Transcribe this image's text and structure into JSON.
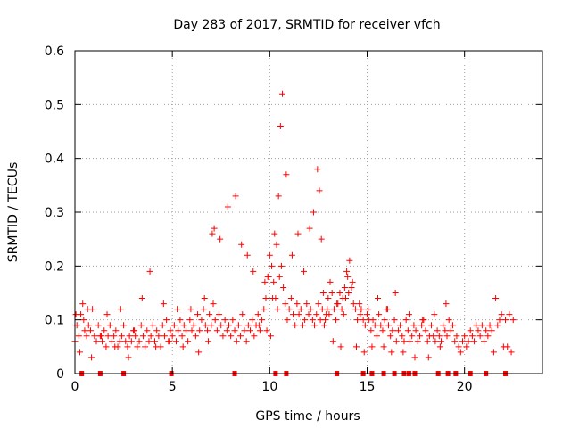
{
  "chart_data": {
    "type": "scatter",
    "title": "Day 283 of 2017, SRMTID for receiver vfch",
    "xlabel": "GPS time / hours",
    "ylabel": "SRMTID / TECUs",
    "xlim": [
      0,
      24
    ],
    "ylim": [
      0,
      0.6
    ],
    "xticks": [
      0,
      5,
      10,
      15,
      20
    ],
    "yticks": [
      0,
      0.1,
      0.2,
      0.3,
      0.4,
      0.5,
      0.6
    ],
    "xtick_labels": [
      "0",
      "5",
      "10",
      "15",
      "20"
    ],
    "ytick_labels": [
      "0",
      "0.1",
      "0.2",
      "0.3",
      "0.4",
      "0.5",
      "0.6"
    ],
    "grid": true,
    "marker": "+",
    "colors": {
      "series": "#ff0000",
      "axes": "#000000",
      "grid": "#a0a0a0"
    },
    "series": [
      {
        "name": "SRMTID",
        "points_x": [
          0.0,
          0.1,
          0.2,
          0.3,
          0.4,
          0.5,
          0.6,
          0.7,
          0.8,
          0.9,
          1.0,
          1.1,
          1.2,
          1.3,
          1.4,
          1.5,
          1.6,
          1.7,
          1.8,
          1.9,
          2.0,
          2.1,
          2.2,
          2.3,
          2.4,
          2.5,
          2.6,
          2.7,
          2.8,
          2.9,
          3.0,
          3.1,
          3.2,
          3.3,
          3.4,
          3.5,
          3.6,
          3.7,
          3.8,
          3.9,
          4.0,
          4.1,
          4.2,
          4.3,
          4.4,
          4.5,
          4.6,
          4.7,
          4.8,
          4.9,
          5.0,
          5.1,
          5.2,
          5.3,
          5.4,
          5.5,
          5.6,
          5.7,
          5.8,
          5.9,
          6.0,
          6.1,
          6.2,
          6.3,
          6.4,
          6.5,
          6.6,
          6.7,
          6.8,
          6.9,
          7.0,
          7.1,
          7.2,
          7.3,
          7.4,
          7.5,
          7.6,
          7.7,
          7.8,
          7.9,
          8.0,
          8.1,
          8.2,
          8.3,
          8.4,
          8.5,
          8.6,
          8.7,
          8.8,
          8.9,
          9.0,
          9.1,
          9.2,
          9.3,
          9.4,
          9.5,
          9.6,
          9.7,
          9.8,
          9.9,
          10.0,
          10.1,
          10.2,
          10.3,
          10.4,
          10.5,
          10.6,
          10.7,
          10.8,
          10.9,
          11.0,
          11.1,
          11.2,
          11.3,
          11.4,
          11.5,
          11.6,
          11.7,
          11.8,
          11.9,
          12.0,
          12.1,
          12.2,
          12.3,
          12.4,
          12.5,
          12.6,
          12.7,
          12.8,
          12.9,
          13.0,
          13.1,
          13.2,
          13.3,
          13.4,
          13.5,
          13.6,
          13.7,
          13.8,
          13.9,
          14.0,
          14.1,
          14.2,
          14.3,
          14.4,
          14.5,
          14.6,
          14.7,
          14.8,
          14.9,
          15.0,
          15.1,
          15.2,
          15.3,
          15.4,
          15.5,
          15.6,
          15.7,
          15.8,
          15.9,
          16.0,
          16.1,
          16.2,
          16.3,
          16.4,
          16.5,
          16.6,
          16.7,
          16.8,
          16.9,
          17.0,
          17.1,
          17.2,
          17.3,
          17.4,
          17.5,
          17.6,
          17.7,
          17.8,
          17.9,
          18.0,
          18.1,
          18.2,
          18.3,
          18.4,
          18.5,
          18.6,
          18.7,
          18.8,
          18.9,
          19.0,
          19.1,
          19.2,
          19.3,
          19.4,
          19.5,
          19.6,
          19.7,
          19.8,
          19.9,
          20.0,
          20.1,
          20.2,
          20.3,
          20.4,
          20.5,
          20.6,
          20.7,
          20.8,
          20.9,
          21.0,
          21.1,
          21.2,
          21.3,
          21.4,
          21.5,
          21.6,
          21.7,
          21.8,
          21.9,
          22.0,
          22.1,
          22.2,
          22.3,
          22.4,
          22.5,
          0.05,
          0.25,
          0.45,
          0.65,
          0.85,
          1.35,
          1.65,
          2.05,
          2.35,
          2.75,
          3.05,
          3.45,
          3.85,
          4.15,
          4.55,
          4.85,
          5.25,
          5.55,
          5.95,
          6.35,
          6.65,
          6.85,
          7.05,
          7.15,
          7.45,
          7.85,
          8.25,
          8.55,
          8.85,
          9.15,
          9.45,
          9.75,
          9.85,
          9.95,
          10.05,
          10.15,
          10.25,
          10.35,
          10.45,
          10.55,
          10.65,
          10.85,
          11.15,
          11.45,
          11.75,
          12.05,
          12.25,
          12.45,
          12.55,
          12.65,
          12.75,
          12.85,
          12.95,
          13.05,
          13.25,
          13.45,
          13.65,
          13.75,
          13.85,
          13.95,
          14.05,
          14.25,
          14.45,
          14.65,
          14.85,
          15.05,
          15.25,
          15.55,
          15.85,
          16.05,
          16.25,
          16.45,
          16.85,
          17.15,
          17.45,
          17.85,
          18.15,
          18.45,
          18.75,
          19.05,
          19.35,
          19.65,
          19.95,
          20.25,
          20.55,
          20.85,
          21.15,
          21.45,
          21.75,
          22.05,
          22.35
        ],
        "points_y": [
          0.06,
          0.09,
          0.07,
          0.11,
          0.13,
          0.08,
          0.07,
          0.09,
          0.08,
          0.12,
          0.07,
          0.06,
          0.09,
          0.07,
          0.06,
          0.08,
          0.05,
          0.07,
          0.09,
          0.06,
          0.07,
          0.08,
          0.05,
          0.06,
          0.07,
          0.09,
          0.06,
          0.05,
          0.07,
          0.06,
          0.08,
          0.07,
          0.05,
          0.06,
          0.09,
          0.07,
          0.05,
          0.08,
          0.06,
          0.07,
          0.09,
          0.06,
          0.08,
          0.07,
          0.05,
          0.09,
          0.07,
          0.1,
          0.06,
          0.08,
          0.07,
          0.09,
          0.06,
          0.08,
          0.1,
          0.07,
          0.09,
          0.08,
          0.06,
          0.1,
          0.08,
          0.09,
          0.07,
          0.11,
          0.08,
          0.1,
          0.12,
          0.09,
          0.08,
          0.11,
          0.09,
          0.13,
          0.1,
          0.08,
          0.11,
          0.09,
          0.07,
          0.1,
          0.08,
          0.09,
          0.07,
          0.1,
          0.08,
          0.06,
          0.09,
          0.07,
          0.11,
          0.08,
          0.06,
          0.09,
          0.08,
          0.1,
          0.07,
          0.09,
          0.11,
          0.08,
          0.1,
          0.12,
          0.14,
          0.18,
          0.22,
          0.2,
          0.17,
          0.14,
          0.12,
          0.18,
          0.2,
          0.16,
          0.13,
          0.1,
          0.12,
          0.14,
          0.11,
          0.09,
          0.13,
          0.11,
          0.12,
          0.09,
          0.1,
          0.13,
          0.11,
          0.12,
          0.1,
          0.09,
          0.11,
          0.13,
          0.1,
          0.12,
          0.09,
          0.11,
          0.14,
          0.17,
          0.15,
          0.12,
          0.1,
          0.13,
          0.15,
          0.12,
          0.11,
          0.14,
          0.18,
          0.21,
          0.16,
          0.13,
          0.12,
          0.1,
          0.13,
          0.12,
          0.1,
          0.09,
          0.11,
          0.1,
          0.08,
          0.1,
          0.09,
          0.07,
          0.11,
          0.09,
          0.08,
          0.1,
          0.12,
          0.09,
          0.07,
          0.08,
          0.1,
          0.06,
          0.08,
          0.09,
          0.07,
          0.06,
          0.1,
          0.08,
          0.06,
          0.07,
          0.09,
          0.08,
          0.06,
          0.07,
          0.09,
          0.1,
          0.08,
          0.06,
          0.07,
          0.09,
          0.07,
          0.06,
          0.08,
          0.07,
          0.06,
          0.09,
          0.08,
          0.07,
          0.1,
          0.08,
          0.09,
          0.06,
          0.07,
          0.05,
          0.04,
          0.06,
          0.07,
          0.05,
          0.06,
          0.08,
          0.07,
          0.06,
          0.09,
          0.08,
          0.07,
          0.09,
          0.06,
          0.08,
          0.07,
          0.09,
          0.08,
          0.04,
          0.14,
          0.09,
          0.1,
          0.11,
          0.05,
          0.1,
          0.05,
          0.11,
          0.04,
          0.1,
          0.11,
          0.04,
          0.1,
          0.12,
          0.03,
          0.07,
          0.11,
          0.05,
          0.12,
          0.03,
          0.08,
          0.14,
          0.19,
          0.05,
          0.13,
          0.06,
          0.12,
          0.05,
          0.12,
          0.04,
          0.14,
          0.06,
          0.26,
          0.27,
          0.25,
          0.31,
          0.33,
          0.24,
          0.22,
          0.19,
          0.09,
          0.17,
          0.08,
          0.18,
          0.07,
          0.14,
          0.26,
          0.24,
          0.33,
          0.46,
          0.52,
          0.37,
          0.22,
          0.26,
          0.19,
          0.27,
          0.3,
          0.38,
          0.34,
          0.25,
          0.15,
          0.1,
          0.12,
          0.11,
          0.06,
          0.13,
          0.05,
          0.14,
          0.16,
          0.19,
          0.15,
          0.17,
          0.05,
          0.11,
          0.04,
          0.12,
          0.05,
          0.14,
          0.05,
          0.12,
          0.04,
          0.15,
          0.04,
          0.11,
          0.03,
          0.1,
          0.03,
          0.11,
          0.05,
          0.13
        ]
      }
    ],
    "rug_x": [
      0.35,
      1.3,
      2.5,
      4.95,
      8.2,
      10.3,
      10.85,
      13.45,
      14.8,
      15.25,
      15.85,
      16.4,
      16.9,
      17.15,
      17.45,
      18.65,
      19.15,
      19.55,
      20.3,
      21.1,
      22.1
    ]
  }
}
